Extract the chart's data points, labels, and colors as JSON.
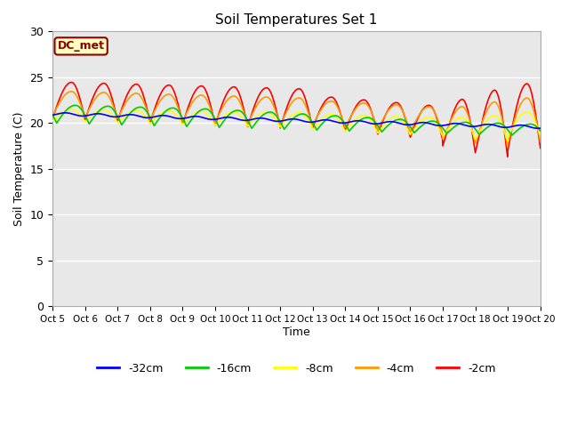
{
  "title": "Soil Temperatures Set 1",
  "xlabel": "Time",
  "ylabel": "Soil Temperature (C)",
  "ylim": [
    0,
    30
  ],
  "background_color": "#e8e8e8",
  "dc_met_label": "DC_met",
  "legend_labels": [
    "-32cm",
    "-16cm",
    "-8cm",
    "-4cm",
    "-2cm"
  ],
  "legend_colors": [
    "#0000ff",
    "#00cc00",
    "#ffff00",
    "#ff9900",
    "#ff0000"
  ],
  "x_tick_labels": [
    "Oct 5",
    "Oct 6",
    "Oct 7",
    "Oct 8",
    "Oct 9",
    "Oct 10",
    "Oct 11",
    "Oct 12",
    "Oct 13",
    "Oct 14",
    "Oct 15",
    "Oct 16",
    "Oct 17",
    "Oct 18",
    "Oct 19",
    "Oct 20"
  ],
  "n_points": 1441
}
